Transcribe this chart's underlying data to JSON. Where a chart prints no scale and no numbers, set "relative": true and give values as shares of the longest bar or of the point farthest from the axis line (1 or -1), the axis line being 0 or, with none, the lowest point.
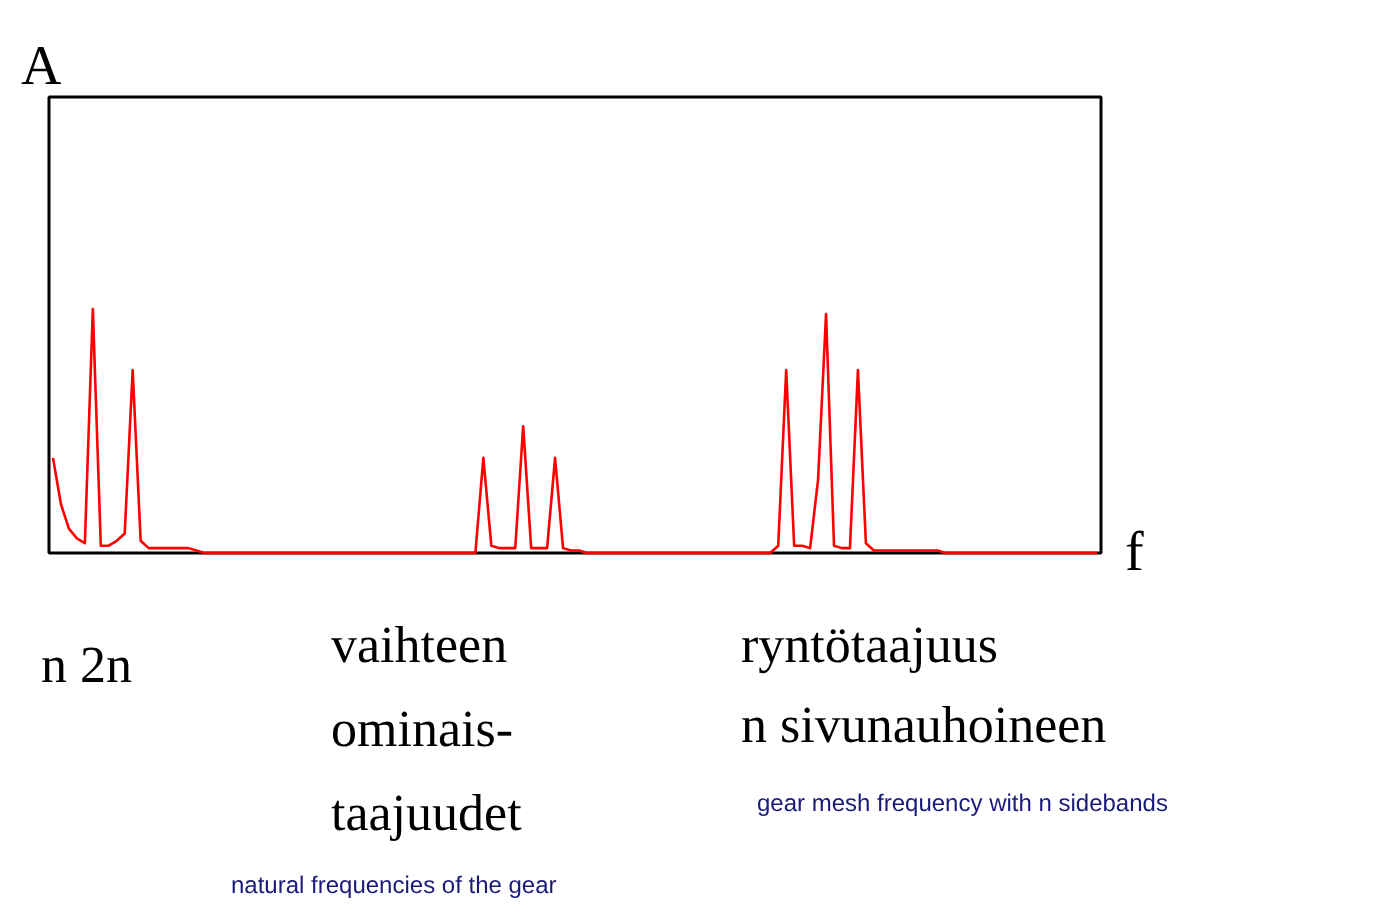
{
  "chart_data": {
    "type": "line",
    "relative": true,
    "xlabel": "f",
    "ylabel": "A",
    "categories": [
      null,
      null,
      null,
      null,
      null,
      null,
      null,
      null,
      null,
      null,
      null,
      null,
      null,
      null,
      null,
      null,
      null,
      null,
      null,
      null,
      null,
      null,
      null,
      null,
      null,
      null,
      null,
      null,
      null,
      null,
      null,
      null,
      null,
      null,
      null,
      null,
      null,
      null,
      null,
      null,
      null,
      null,
      null,
      null,
      null,
      null,
      null,
      null,
      null,
      null,
      null,
      null,
      null,
      null,
      null,
      null,
      null,
      null,
      null,
      null,
      null,
      null,
      null,
      null,
      null,
      null,
      null,
      null,
      null,
      null,
      null,
      null,
      null,
      null,
      null,
      null,
      null,
      null,
      null,
      null,
      null,
      null,
      null,
      null,
      null,
      null,
      null,
      null,
      null,
      null,
      null,
      null,
      null,
      null,
      null,
      null,
      null,
      null,
      null,
      null,
      null,
      null,
      null,
      null,
      null,
      null,
      null,
      null,
      null,
      null,
      null,
      null,
      null,
      null,
      null,
      null,
      null,
      null,
      null,
      null,
      null,
      null,
      null,
      null,
      null,
      null,
      null,
      null,
      null,
      null,
      null,
      null
    ],
    "series": [
      {
        "color": "#ff0000",
        "values": [
          0.39,
          0.2,
          0.1,
          0.06,
          0.04,
          1.0,
          0.03,
          0.03,
          0.05,
          0.08,
          0.75,
          0.05,
          0.02,
          0.02,
          0.02,
          0.02,
          0.02,
          0.02,
          0.01,
          0,
          0,
          0,
          0,
          0,
          0,
          0,
          0,
          0,
          0,
          0,
          0,
          0,
          0,
          0,
          0,
          0,
          0,
          0,
          0,
          0,
          0,
          0,
          0,
          0,
          0,
          0,
          0,
          0,
          0,
          0,
          0,
          0,
          0,
          0,
          0.39,
          0.03,
          0.02,
          0.02,
          0.02,
          0.52,
          0.02,
          0.02,
          0.02,
          0.39,
          0.02,
          0.01,
          0.01,
          0,
          0,
          0,
          0,
          0,
          0,
          0,
          0,
          0,
          0,
          0,
          0,
          0,
          0,
          0,
          0,
          0,
          0,
          0,
          0,
          0,
          0,
          0,
          0,
          0.03,
          0.75,
          0.03,
          0.03,
          0.02,
          0.3,
          0.98,
          0.03,
          0.02,
          0.02,
          0.75,
          0.04,
          0.01,
          0.01,
          0.01,
          0.01,
          0.01,
          0.01,
          0.01,
          0.01,
          0.01,
          0,
          0,
          0,
          0,
          0,
          0,
          0,
          0,
          0,
          0,
          0,
          0,
          0,
          0,
          0,
          0,
          0,
          0,
          0,
          0
        ]
      }
    ],
    "annotations": [
      "n 2n",
      "vaihteen\nominais-\ntaajuudet",
      "natural frequencies of the gear",
      "ryntötaajuus\nn sivunauhoineen",
      "gear mesh frequency with n sidebands"
    ]
  }
}
